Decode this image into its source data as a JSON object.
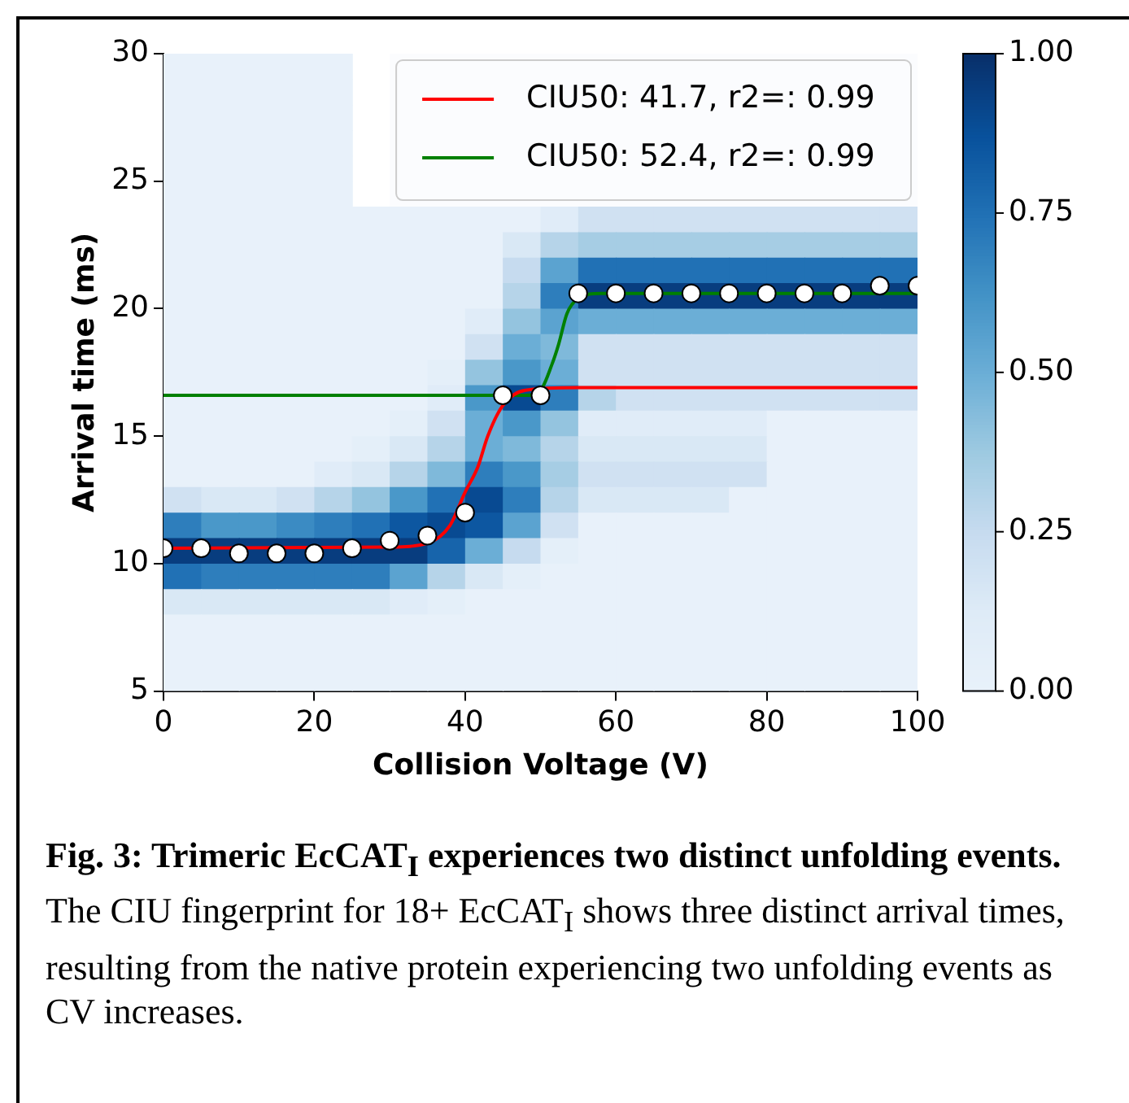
{
  "chart_data": {
    "type": "heatmap",
    "xlabel": "Collision Voltage (V)",
    "ylabel": "Arrival time (ms)",
    "xlim": [
      0,
      100
    ],
    "xticks": [
      0,
      20,
      40,
      60,
      80,
      100
    ],
    "ylim": [
      5,
      30
    ],
    "yticks": [
      5,
      10,
      15,
      20,
      25,
      30
    ],
    "grid": false,
    "legend": "top right",
    "clim": [
      0,
      1
    ],
    "cticks": [
      {
        "value": 0,
        "label": "0.00"
      },
      {
        "value": 0.25,
        "label": "0.25"
      },
      {
        "value": 0.5,
        "label": "0.50"
      },
      {
        "value": 0.75,
        "label": "0.75"
      },
      {
        "value": 1,
        "label": "1.00"
      }
    ],
    "x": [
      2.5,
      7.5,
      12.5,
      17.5,
      22.5,
      27.5,
      32.5,
      37.5,
      42.5,
      47.5,
      52.5,
      57.5,
      62.5,
      67.5,
      72.5,
      77.5,
      82.5,
      87.5,
      92.5,
      97.5
    ],
    "y": [
      29.5,
      28.5,
      27.5,
      26.5,
      25.5,
      24.5,
      23.5,
      22.5,
      21.5,
      20.5,
      19.5,
      18.5,
      17.5,
      16.5,
      15.5,
      14.5,
      13.5,
      12.5,
      11.5,
      10.5,
      9.5,
      8.5,
      7.5,
      6.5,
      5.5
    ],
    "cells": [
      [
        0,
        0,
        0,
        0,
        0,
        null,
        null,
        null,
        null,
        null,
        null,
        null,
        null,
        null,
        null,
        null,
        null,
        null,
        null,
        null
      ],
      [
        0,
        0,
        0,
        0,
        0,
        null,
        null,
        null,
        null,
        null,
        null,
        null,
        null,
        null,
        null,
        null,
        null,
        null,
        null,
        null
      ],
      [
        0,
        0,
        0,
        0,
        0,
        null,
        null,
        null,
        null,
        null,
        null,
        null,
        null,
        null,
        null,
        null,
        null,
        null,
        null,
        null
      ],
      [
        0,
        0,
        0,
        0,
        0,
        null,
        null,
        null,
        null,
        null,
        null,
        null,
        null,
        null,
        null,
        null,
        null,
        null,
        null,
        null
      ],
      [
        0,
        0,
        0,
        0,
        0,
        null,
        null,
        null,
        null,
        null,
        null,
        null,
        null,
        null,
        null,
        null,
        null,
        null,
        null,
        null
      ],
      [
        0,
        0,
        0,
        0,
        0,
        null,
        null,
        null,
        null,
        null,
        null,
        null,
        null,
        null,
        null,
        null,
        null,
        null,
        null,
        null
      ],
      [
        0,
        0,
        0,
        0,
        0,
        0,
        0,
        0,
        0,
        0,
        0.1,
        0.2,
        0.2,
        0.2,
        0.2,
        0.2,
        0.2,
        0.2,
        0.2,
        0.2
      ],
      [
        0,
        0,
        0,
        0,
        0,
        0,
        0,
        0,
        0,
        0.15,
        0.3,
        0.35,
        0.35,
        0.35,
        0.35,
        0.35,
        0.35,
        0.35,
        0.35,
        0.35
      ],
      [
        0,
        0,
        0,
        0,
        0,
        0,
        0,
        0,
        0,
        0.25,
        0.55,
        0.75,
        0.75,
        0.75,
        0.75,
        0.75,
        0.75,
        0.75,
        0.75,
        0.75
      ],
      [
        0,
        0,
        0,
        0,
        0,
        0,
        0,
        0,
        0,
        0.3,
        0.7,
        0.95,
        0.95,
        0.95,
        0.95,
        0.95,
        0.95,
        0.95,
        0.95,
        0.95
      ],
      [
        0,
        0,
        0,
        0,
        0,
        0,
        0,
        0,
        0.1,
        0.4,
        0.55,
        0.5,
        0.5,
        0.5,
        0.5,
        0.5,
        0.5,
        0.5,
        0.5,
        0.5
      ],
      [
        0,
        0,
        0,
        0,
        0,
        0,
        0,
        0,
        0.2,
        0.5,
        0.45,
        0.2,
        0.2,
        0.2,
        0.2,
        0.2,
        0.2,
        0.2,
        0.2,
        0.2
      ],
      [
        0,
        0,
        0,
        0,
        0,
        0,
        0,
        0.05,
        0.4,
        0.6,
        0.5,
        0.2,
        0.2,
        0.2,
        0.2,
        0.2,
        0.2,
        0.2,
        0.2,
        0.2
      ],
      [
        0,
        0,
        0,
        0,
        0,
        0,
        0,
        0.1,
        0.6,
        0.9,
        0.7,
        0.3,
        0.2,
        0.2,
        0.2,
        0.2,
        0.2,
        0.2,
        0.2,
        0.2
      ],
      [
        0,
        0,
        0,
        0,
        0,
        0,
        0.05,
        0.2,
        0.5,
        0.6,
        0.4,
        0.1,
        0.1,
        0.1,
        0.1,
        0.1,
        0,
        0,
        0,
        0
      ],
      [
        0,
        0,
        0,
        0,
        0,
        0.05,
        0.15,
        0.3,
        0.5,
        0.45,
        0.3,
        0.15,
        0.15,
        0.15,
        0.15,
        0.15,
        0,
        0,
        0,
        0
      ],
      [
        0,
        0,
        0,
        0,
        0.1,
        0.15,
        0.3,
        0.45,
        0.7,
        0.6,
        0.35,
        0.2,
        0.2,
        0.2,
        0.2,
        0.2,
        0,
        0,
        0,
        0
      ],
      [
        0.2,
        0.15,
        0.15,
        0.2,
        0.3,
        0.4,
        0.6,
        0.75,
        0.9,
        0.7,
        0.3,
        0.15,
        0.15,
        0.15,
        0.15,
        0,
        0,
        0,
        0,
        0
      ],
      [
        0.7,
        0.6,
        0.6,
        0.65,
        0.7,
        0.75,
        0.85,
        0.9,
        0.85,
        0.55,
        0.2,
        0,
        0,
        0,
        0,
        0,
        0,
        0,
        0,
        0
      ],
      [
        0.95,
        0.95,
        0.95,
        0.95,
        0.95,
        0.95,
        0.95,
        0.8,
        0.5,
        0.25,
        0.05,
        0,
        0,
        0,
        0,
        0,
        0,
        0,
        0,
        0
      ],
      [
        0.75,
        0.7,
        0.7,
        0.7,
        0.7,
        0.7,
        0.55,
        0.3,
        0.15,
        0.05,
        0,
        0,
        0,
        0,
        0,
        0,
        0,
        0,
        0,
        0
      ],
      [
        0.15,
        0.15,
        0.15,
        0.15,
        0.15,
        0.15,
        0.1,
        0.05,
        0,
        0,
        0,
        0,
        0,
        0,
        0,
        0,
        0,
        0,
        0,
        0
      ],
      [
        0,
        0,
        0,
        0,
        0,
        0,
        0,
        0,
        0,
        0,
        0,
        0,
        0,
        0,
        0,
        0,
        0,
        0,
        0,
        0
      ],
      [
        0,
        0,
        0,
        0,
        0,
        0,
        0,
        0,
        0,
        0,
        0,
        0,
        0,
        0,
        0,
        0,
        0,
        0,
        0,
        0
      ],
      [
        0,
        0,
        0,
        0,
        0,
        0,
        0,
        0,
        0,
        0,
        0,
        0,
        0,
        0,
        0,
        0,
        0,
        0,
        0,
        0
      ]
    ],
    "series": [
      {
        "type": "line",
        "name": "CIU50: 41.7, r2=: 0.99",
        "color": "#ff0000",
        "x": [
          0,
          30,
          35,
          38,
          40,
          41.7,
          43,
          45,
          48,
          55,
          100
        ],
        "values": [
          10.6,
          10.65,
          10.8,
          11.5,
          12.8,
          13.8,
          15.0,
          16.2,
          16.8,
          16.9,
          16.9
        ]
      },
      {
        "type": "line",
        "name": "CIU50: 52.4, r2=: 0.99",
        "color": "#008000",
        "x": [
          0,
          48,
          50,
          51.5,
          52.4,
          53.5,
          55,
          58,
          100
        ],
        "values": [
          16.6,
          16.6,
          16.8,
          17.8,
          18.6,
          19.8,
          20.4,
          20.6,
          20.6
        ]
      },
      {
        "type": "scatter",
        "color": "#ffffff",
        "marker": "circle",
        "x": [
          0,
          5,
          10,
          15,
          20,
          25,
          30,
          35,
          40,
          45,
          50,
          55,
          60,
          65,
          70,
          75,
          80,
          85,
          90,
          95,
          100
        ],
        "values": [
          10.6,
          10.6,
          10.4,
          10.4,
          10.4,
          10.6,
          10.9,
          11.1,
          12.0,
          16.6,
          16.6,
          20.6,
          20.6,
          20.6,
          20.6,
          20.6,
          20.6,
          20.6,
          20.6,
          20.9,
          20.9
        ]
      }
    ],
    "annotations": [
      "Fig. 3: Trimeric EcCAT$_{I}$ experiences two distinct unfolding events.",
      "The CIU fingerprint for 18+ EcCAT$_{I}$ shows three distinct arrival times, resulting from the native protein experiencing two unfolding events as CV increases."
    ]
  }
}
